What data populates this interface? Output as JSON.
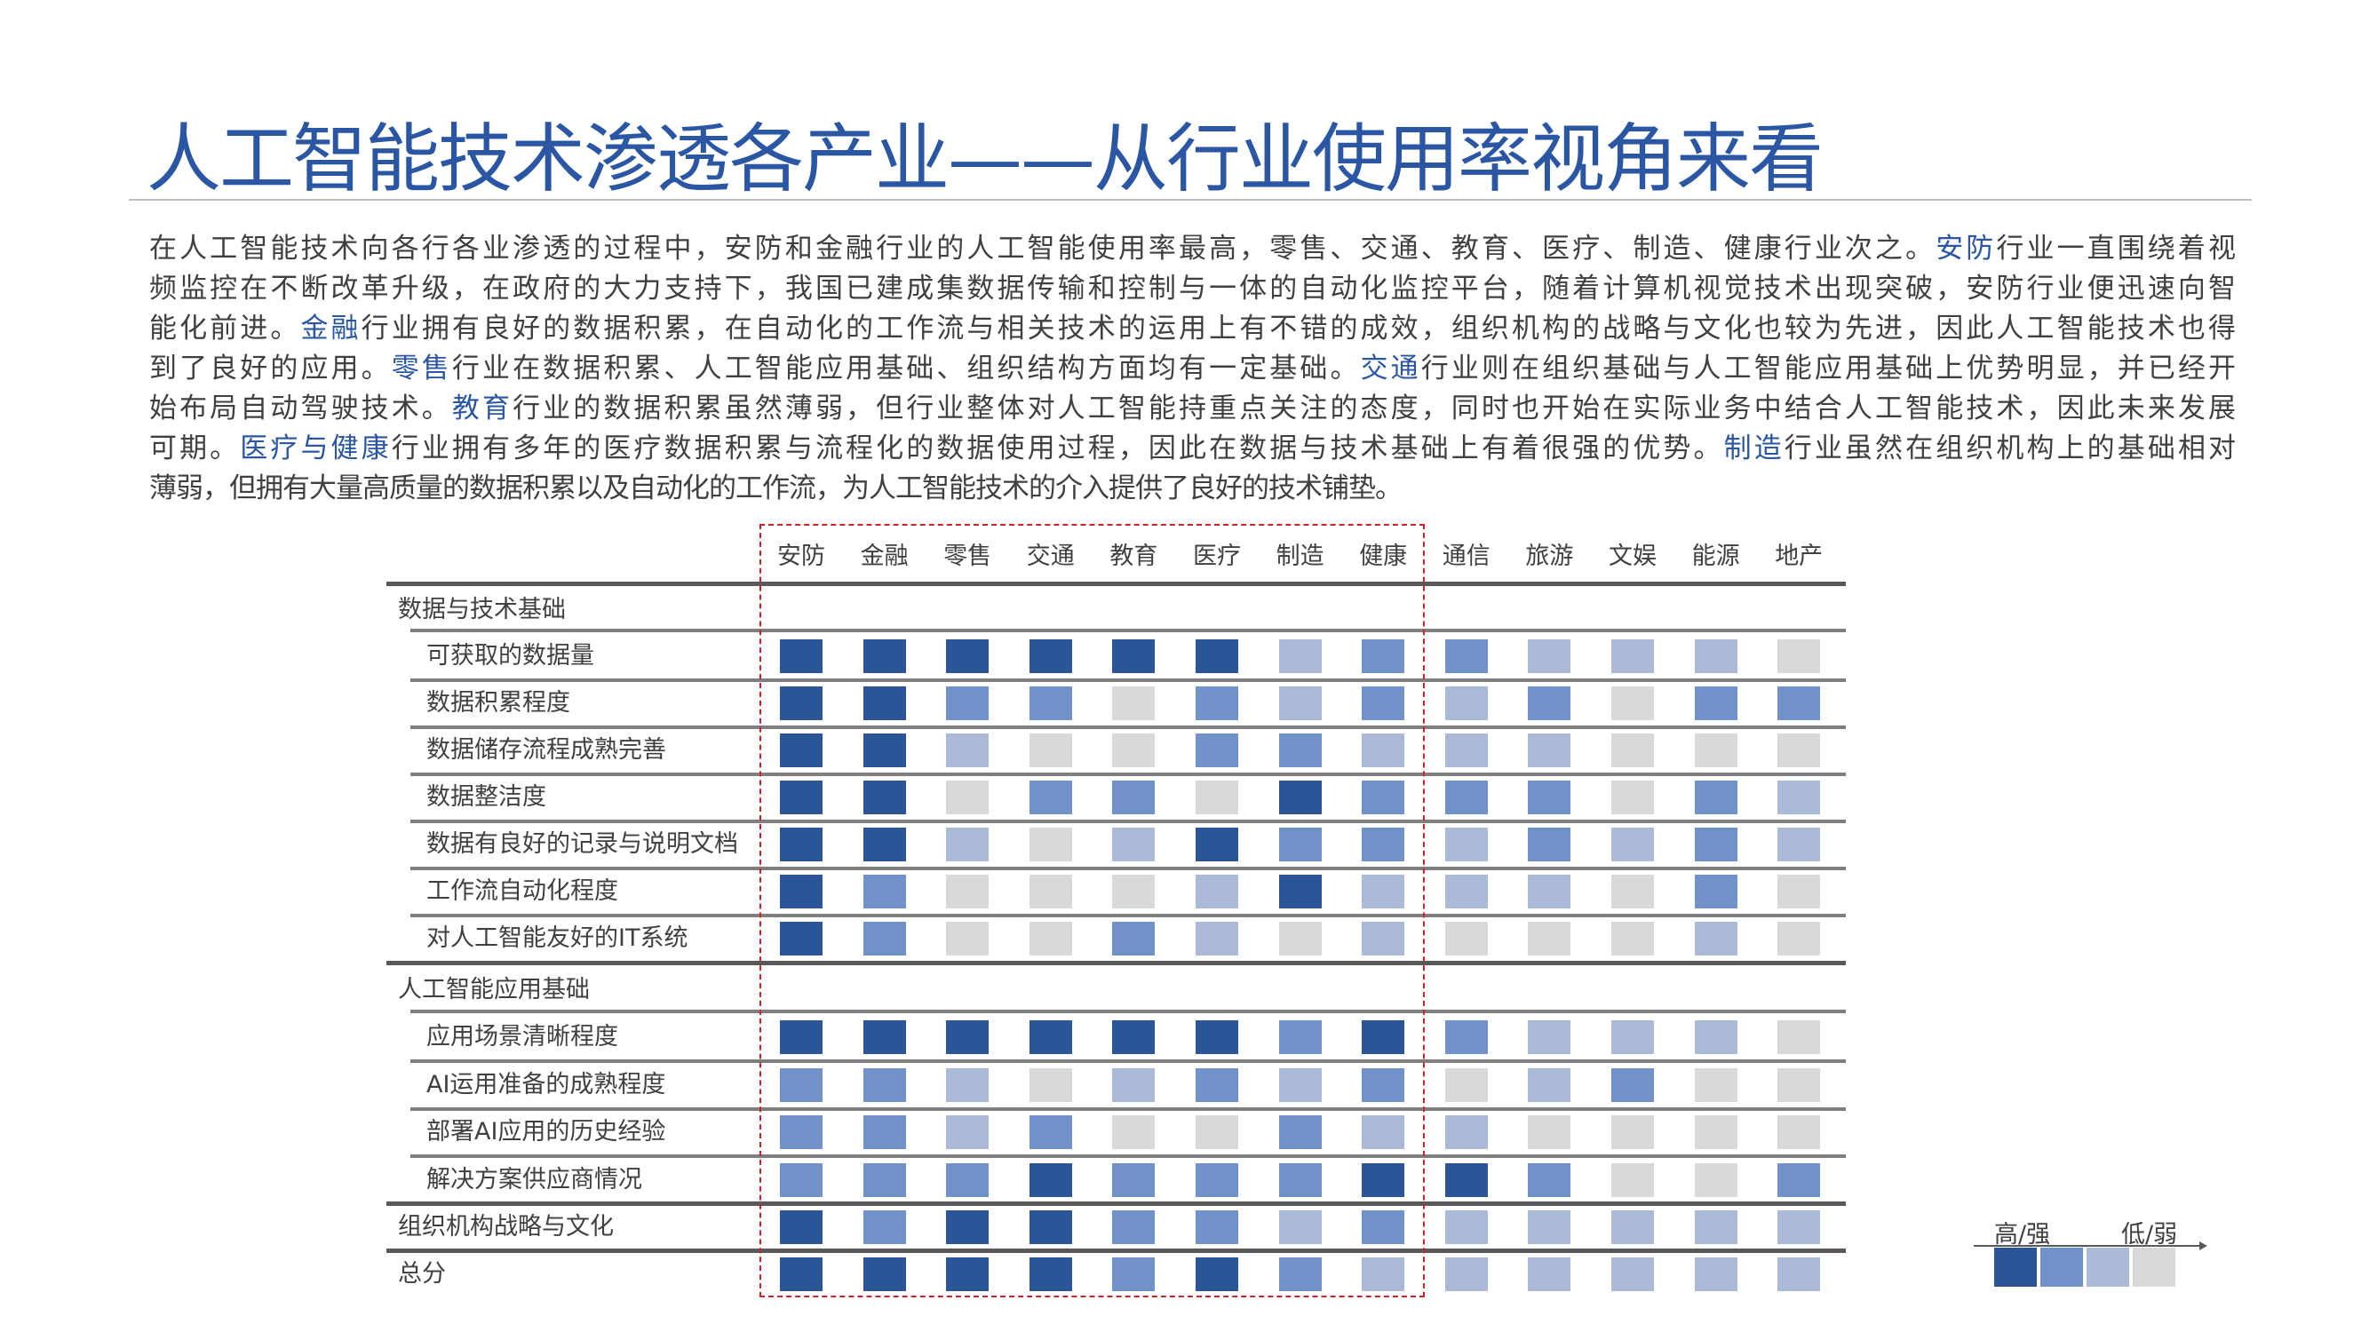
{
  "title": "人工智能技术渗透各产业——从行业使用率视角来看",
  "paragraph_lines": [
    [
      {
        "t": "在人工智能技术向各行各业渗透的过程中，安防和金融行业的人工智能使用率最高，零售、交通、教育、医疗、制造、健康行业次之。"
      },
      {
        "t": "安防",
        "hl": true
      },
      {
        "t": "行业一直围绕着视"
      }
    ],
    [
      {
        "t": "频监控在不断改革升级，在政府的大力支持下，我国已建成集数据传输和控制与一体的自动化监控平台，随着计算机视觉技术出现突破，安防行业便迅速向智"
      }
    ],
    [
      {
        "t": "能化前进。"
      },
      {
        "t": "金融",
        "hl": true
      },
      {
        "t": "行业拥有良好的数据积累，在自动化的工作流与相关技术的运用上有不错的成效，组织机构的战略与文化也较为先进，因此人工智能技术也得"
      }
    ],
    [
      {
        "t": "到了良好的应用。"
      },
      {
        "t": "零售",
        "hl": true
      },
      {
        "t": "行业在数据积累、人工智能应用基础、组织结构方面均有一定基础。"
      },
      {
        "t": "交通",
        "hl": true
      },
      {
        "t": "行业则在组织基础与人工智能应用基础上优势明显，并已经开"
      }
    ],
    [
      {
        "t": "始布局自动驾驶技术。"
      },
      {
        "t": "教育",
        "hl": true
      },
      {
        "t": "行业的数据积累虽然薄弱，但行业整体对人工智能持重点关注的态度，同时也开始在实际业务中结合人工智能技术，因此未来发展"
      }
    ],
    [
      {
        "t": "可期。"
      },
      {
        "t": "医疗与健康",
        "hl": true
      },
      {
        "t": "行业拥有多年的医疗数据积累与流程化的数据使用过程，因此在数据与技术基础上有着很强的优势。"
      },
      {
        "t": "制造",
        "hl": true
      },
      {
        "t": "行业虽然在组织机构上的基础相对"
      }
    ],
    [
      {
        "t": "薄弱，但拥有大量高质量的数据积累以及自动化的工作流，为人工智能技术的介入提供了良好的技术铺垫。"
      }
    ]
  ],
  "table": {
    "columns": [
      "安防",
      "金融",
      "零售",
      "交通",
      "教育",
      "医疗",
      "制造",
      "健康",
      "通信",
      "旅游",
      "文娱",
      "能源",
      "地产"
    ],
    "highlighted_columns": [
      "安防",
      "金融",
      "零售",
      "交通",
      "教育",
      "医疗",
      "制造",
      "健康"
    ],
    "rows": [
      {
        "label": "数据与技术基础",
        "type": "section"
      },
      {
        "label": "可获取的数据量",
        "type": "item",
        "levels": [
          4,
          4,
          4,
          4,
          4,
          4,
          2,
          3,
          3,
          2,
          2,
          2,
          1
        ]
      },
      {
        "label": "数据积累程度",
        "type": "item",
        "levels": [
          4,
          4,
          3,
          3,
          1,
          3,
          2,
          3,
          2,
          3,
          1,
          3,
          3
        ]
      },
      {
        "label": "数据储存流程成熟完善",
        "type": "item",
        "levels": [
          4,
          4,
          2,
          1,
          1,
          3,
          3,
          2,
          2,
          2,
          1,
          1,
          1
        ]
      },
      {
        "label": "数据整洁度",
        "type": "item",
        "levels": [
          4,
          4,
          1,
          3,
          3,
          1,
          4,
          3,
          3,
          3,
          1,
          3,
          2
        ]
      },
      {
        "label": "数据有良好的记录与说明文档",
        "type": "item",
        "levels": [
          4,
          4,
          2,
          1,
          2,
          4,
          3,
          3,
          2,
          3,
          2,
          3,
          2
        ]
      },
      {
        "label": "工作流自动化程度",
        "type": "item",
        "levels": [
          4,
          3,
          1,
          1,
          1,
          2,
          4,
          2,
          2,
          2,
          1,
          3,
          1
        ]
      },
      {
        "label": "对人工智能友好的IT系统",
        "type": "item",
        "levels": [
          4,
          3,
          1,
          1,
          3,
          2,
          1,
          2,
          1,
          1,
          1,
          2,
          1
        ]
      },
      {
        "label": "人工智能应用基础",
        "type": "section"
      },
      {
        "label": "应用场景清晰程度",
        "type": "item",
        "levels": [
          4,
          4,
          4,
          4,
          4,
          4,
          3,
          4,
          3,
          2,
          2,
          2,
          1
        ]
      },
      {
        "label": "AI运用准备的成熟程度",
        "type": "item",
        "levels": [
          3,
          3,
          2,
          1,
          2,
          3,
          2,
          3,
          1,
          2,
          3,
          1,
          1
        ]
      },
      {
        "label": "部署AI应用的历史经验",
        "type": "item",
        "levels": [
          3,
          3,
          2,
          3,
          1,
          1,
          3,
          2,
          2,
          1,
          1,
          1,
          1
        ]
      },
      {
        "label": "解决方案供应商情况",
        "type": "item",
        "levels": [
          3,
          3,
          3,
          4,
          3,
          3,
          3,
          4,
          4,
          3,
          1,
          1,
          3
        ]
      },
      {
        "label": "组织机构战略与文化",
        "type": "top",
        "levels": [
          4,
          3,
          4,
          4,
          3,
          3,
          2,
          3,
          2,
          2,
          2,
          2,
          2
        ]
      },
      {
        "label": "总分",
        "type": "top",
        "levels": [
          4,
          4,
          4,
          4,
          3,
          4,
          3,
          2,
          2,
          2,
          2,
          2,
          2
        ]
      }
    ]
  },
  "level_colors": {
    "4": "#2b5597",
    "3": "#7092c8",
    "2": "#abbad6",
    "1": "#d9d9d9"
  },
  "highlight_box_color": "#d42027",
  "legend": {
    "high_label": "高/强",
    "low_label": "低/弱",
    "levels": [
      4,
      3,
      2,
      1
    ]
  }
}
